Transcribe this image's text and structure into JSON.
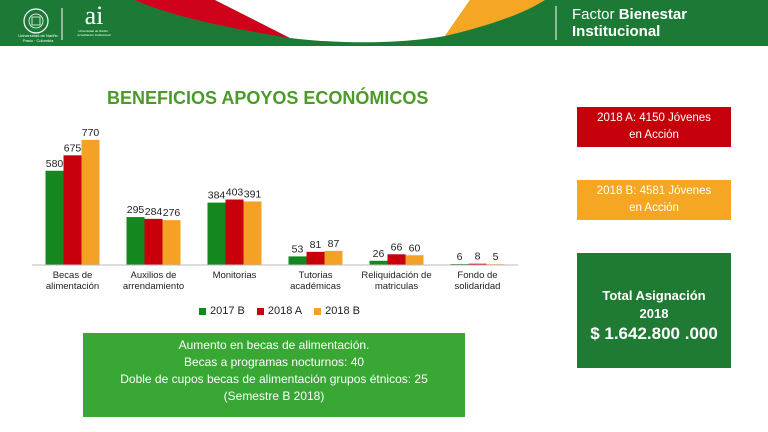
{
  "header": {
    "university_name": "Universidad de Nariño",
    "university_sub": "Pasto · Colombia",
    "ai_mark": "ai",
    "ai_caption": "Universidad de Nariño · Acreditación Institucional",
    "factor_line1_regular": "Factor ",
    "factor_line1_bold": "Bienestar",
    "factor_line2_bold": "Institucional"
  },
  "main_title": "BENEFICIOS APOYOS ECONÓMICOS",
  "chart_data": {
    "type": "bar",
    "title": "",
    "categories": [
      [
        "Becas de",
        "alimentación"
      ],
      [
        "Auxilios de",
        "arrendamiento"
      ],
      [
        "Monitorias"
      ],
      [
        "Tutorias",
        "académicas"
      ],
      [
        "Reliquidación de",
        "matriculas"
      ],
      [
        "Fondo de",
        "solidaridad"
      ]
    ],
    "series": [
      {
        "name": "2017 B",
        "color": "#14871f",
        "values": [
          580,
          295,
          384,
          53,
          26,
          6
        ]
      },
      {
        "name": "2018 A",
        "color": "#c8000c",
        "values": [
          675,
          284,
          403,
          81,
          66,
          8
        ]
      },
      {
        "name": "2018 B",
        "color": "#f4a126",
        "values": [
          770,
          276,
          391,
          87,
          60,
          5
        ]
      }
    ],
    "ylim": [
      0,
      800
    ],
    "grid": false,
    "legend_position": "bottom",
    "data_labels": true
  },
  "notes": {
    "line1": "Aumento en becas de alimentación.",
    "line2": "Becas a programas nocturnos: 40",
    "line3": "Doble de cupos  becas de alimentación  grupos étnicos: 25",
    "line4": "(Semestre B 2018)"
  },
  "box_2018a": {
    "line1": "2018 A: 4150 Jóvenes",
    "line2": "en Acción"
  },
  "box_2018b": {
    "line1": "2018 B: 4581 Jóvenes",
    "line2": "en Acción"
  },
  "total": {
    "line1": "Total Asignación",
    "line2": "2018",
    "line3": "$ 1.642.800 .000"
  }
}
